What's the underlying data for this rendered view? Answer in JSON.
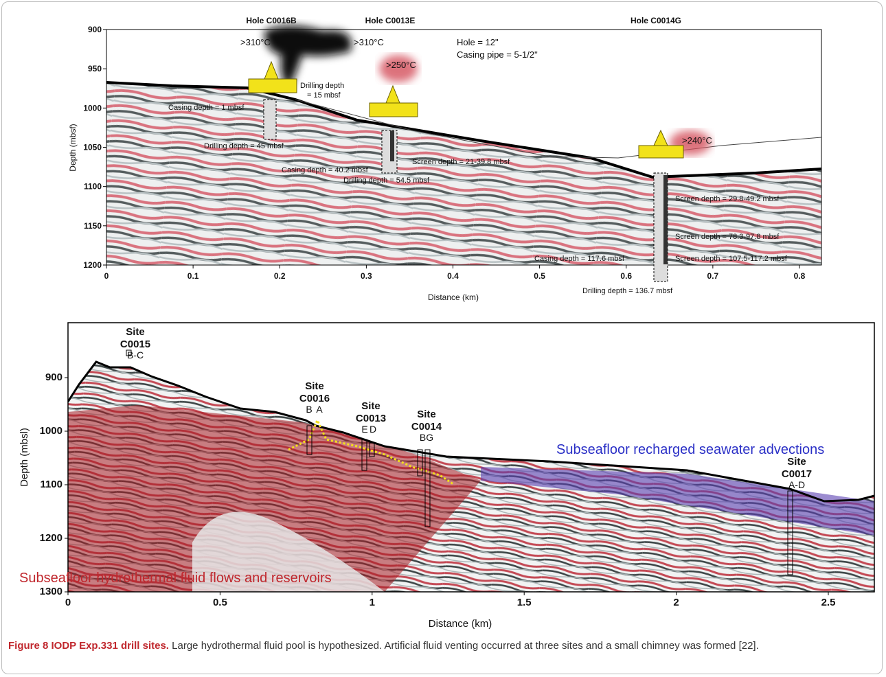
{
  "figure": {
    "top_panel": {
      "holes": [
        "Hole C0016B",
        "Hole C0013E",
        "Hole C0014G"
      ],
      "y_label": "Depth (mbsf)",
      "x_label": "Distance (km)",
      "yticks": [
        900,
        950,
        1000,
        1050,
        1100,
        1150,
        1200
      ],
      "xticks": [
        0,
        0.1,
        0.2,
        0.3,
        0.4,
        0.5,
        0.6,
        0.7,
        0.8
      ],
      "annotations": [
        ">310°C",
        ">310°C",
        "Hole = 12\"",
        "Casing pipe = 5-1/2\"",
        ">250°C",
        "Drilling depth",
        "= 15 mbsf",
        "Casing depth = 1 mbsf",
        "Drilling depth = 45 mbsf",
        ">240°C",
        "Screen depth = 21-39.8 mbsf",
        "Casing depth = 40.2 mbsf",
        "Drilling depth = 54.5 mbsf",
        "Screen depth = 29.8-49.2 mbsf",
        "Screen depth = 78.3-97.8 mbsf",
        "Casing depth = 117.6 mbsf",
        "Screen depth = 107.5-117.2 mbsf",
        "Drilling depth = 136.7 mbsf"
      ]
    },
    "bottom_panel": {
      "y_label": "Depth (mbsl)",
      "x_label": "Distance (km)",
      "yticks": [
        900,
        1000,
        1100,
        1200,
        1300
      ],
      "xticks": [
        0,
        0.5,
        1,
        1.5,
        2,
        2.5
      ],
      "sites": [
        {
          "heading": "Site",
          "code": "C0015",
          "holes": [
            "B-C"
          ]
        },
        {
          "heading": "Site",
          "code": "C0016",
          "holes": [
            "B",
            "A"
          ]
        },
        {
          "heading": "Site",
          "code": "C0013",
          "holes": [
            "E",
            "D"
          ]
        },
        {
          "heading": "Site",
          "code": "C0014",
          "holes": [
            "BG"
          ]
        },
        {
          "heading": "Site",
          "code": "C0017",
          "holes": [
            "A-D"
          ]
        }
      ],
      "annotations": [
        "Subseafloor recharged seawater advections",
        "Subseafloor hydrothermal fluid flows and reservoirs"
      ]
    },
    "caption": {
      "label": "Figure 8 IODP Exp.331 drill sites.",
      "text": "Large hydrothermal fluid pool is hypothesized. Artificial fluid venting occurred at three sites and a small chimney was formed [22]."
    }
  }
}
